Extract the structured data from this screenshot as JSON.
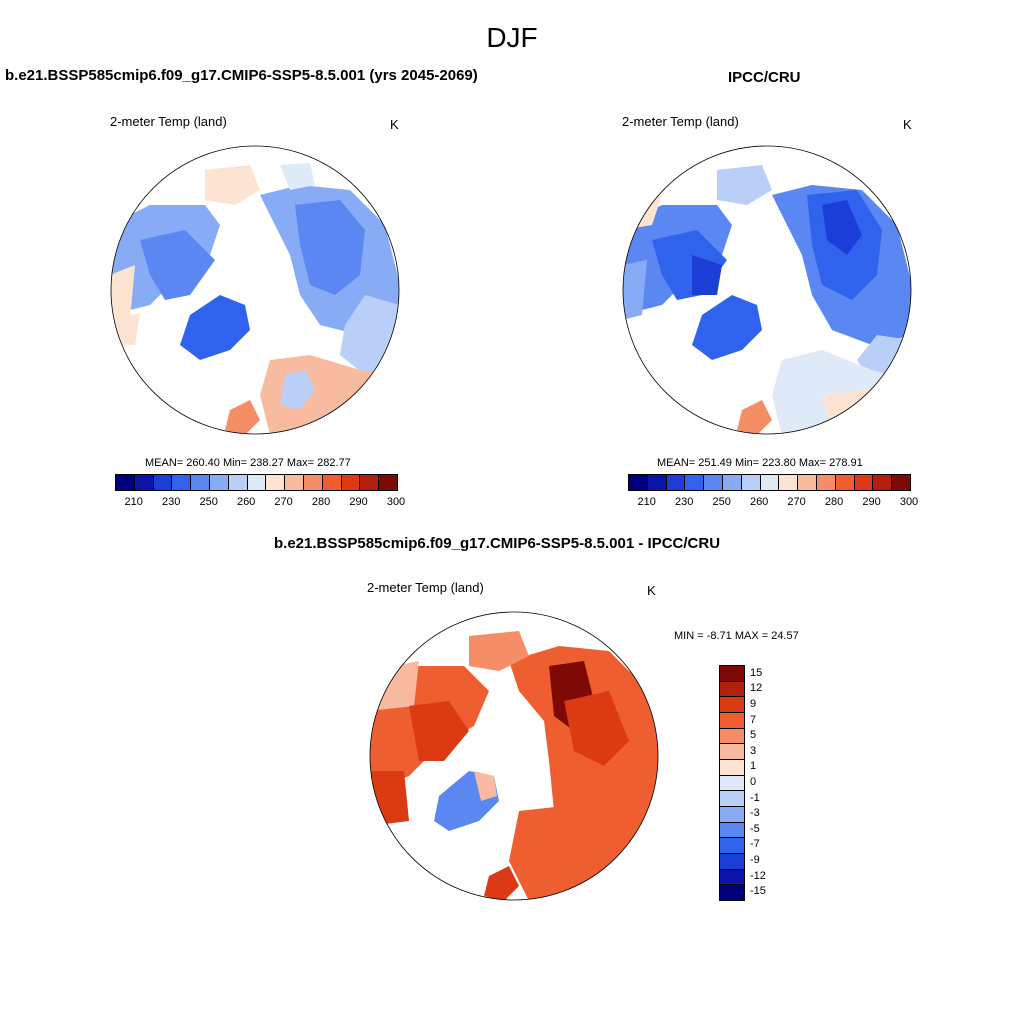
{
  "season": "DJF",
  "left_panel": {
    "title": "b.e21.BSSP585cmip6.f09_g17.CMIP6-SSP5-8.5.001 (yrs 2045-2069)",
    "var_label": "2-meter Temp (land)",
    "units": "K",
    "stats": "MEAN= 260.40  Min= 238.27  Max= 282.77"
  },
  "right_panel": {
    "title": "IPCC/CRU",
    "var_label": "2-meter Temp (land)",
    "units": "K",
    "stats": "MEAN= 251.49  Min= 223.80  Max= 278.91"
  },
  "diff_panel": {
    "title": "b.e21.BSSP585cmip6.f09_g17.CMIP6-SSP5-8.5.001 - IPCC/CRU",
    "var_label": "2-meter Temp (land)",
    "units": "K",
    "stats": "MIN =  -8.71 MAX =  24.57"
  },
  "abs_colorbar": {
    "colors": [
      "#00007f",
      "#0a14a8",
      "#1b3fd6",
      "#2f63ee",
      "#5a87f2",
      "#88abf6",
      "#b9cff8",
      "#deeaf8",
      "#fde3d2",
      "#f9bba0",
      "#f58d66",
      "#ef5e31",
      "#db3a12",
      "#b1200a",
      "#7d0a04"
    ],
    "tick_labels": [
      "210",
      "230",
      "250",
      "260",
      "270",
      "280",
      "290",
      "300"
    ]
  },
  "diff_colorbar": {
    "colors": [
      "#00007f",
      "#0a14a8",
      "#1b3fd6",
      "#2f63ee",
      "#5a87f2",
      "#88abf6",
      "#b9cff8",
      "#deeaf8",
      "#fde3d2",
      "#f9bba0",
      "#f58d66",
      "#ef5e31",
      "#db3a12",
      "#b1200a",
      "#7d0a04"
    ],
    "tick_labels": [
      "-15",
      "-12",
      "-9",
      "-7",
      "-5",
      "-3",
      "-1",
      "0",
      "1",
      "3",
      "5",
      "7",
      "9",
      "12",
      "15"
    ]
  },
  "chart_data": [
    {
      "type": "heatmap",
      "title": "b.e21.BSSP585cmip6.f09_g17.CMIP6-SSP5-8.5.001 (yrs 2045-2069)",
      "variable": "2-meter Temp (land)",
      "units": "K",
      "mean": 260.4,
      "min": 238.27,
      "max": 282.77,
      "contour_levels": [
        210,
        220,
        230,
        240,
        250,
        255,
        260,
        265,
        270,
        275,
        280,
        285,
        290,
        295,
        300
      ]
    },
    {
      "type": "heatmap",
      "title": "IPCC/CRU",
      "variable": "2-meter Temp (land)",
      "units": "K",
      "mean": 251.49,
      "min": 223.8,
      "max": 278.91,
      "contour_levels": [
        210,
        220,
        230,
        240,
        250,
        255,
        260,
        265,
        270,
        275,
        280,
        285,
        290,
        295,
        300
      ]
    },
    {
      "type": "heatmap",
      "title": "b.e21.BSSP585cmip6.f09_g17.CMIP6-SSP5-8.5.001 - IPCC/CRU",
      "variable": "2-meter Temp (land)",
      "units": "K",
      "min": -8.71,
      "max": 24.57,
      "contour_levels": [
        -15,
        -12,
        -9,
        -7,
        -5,
        -3,
        -1,
        0,
        1,
        3,
        5,
        7,
        9,
        12,
        15
      ]
    }
  ]
}
